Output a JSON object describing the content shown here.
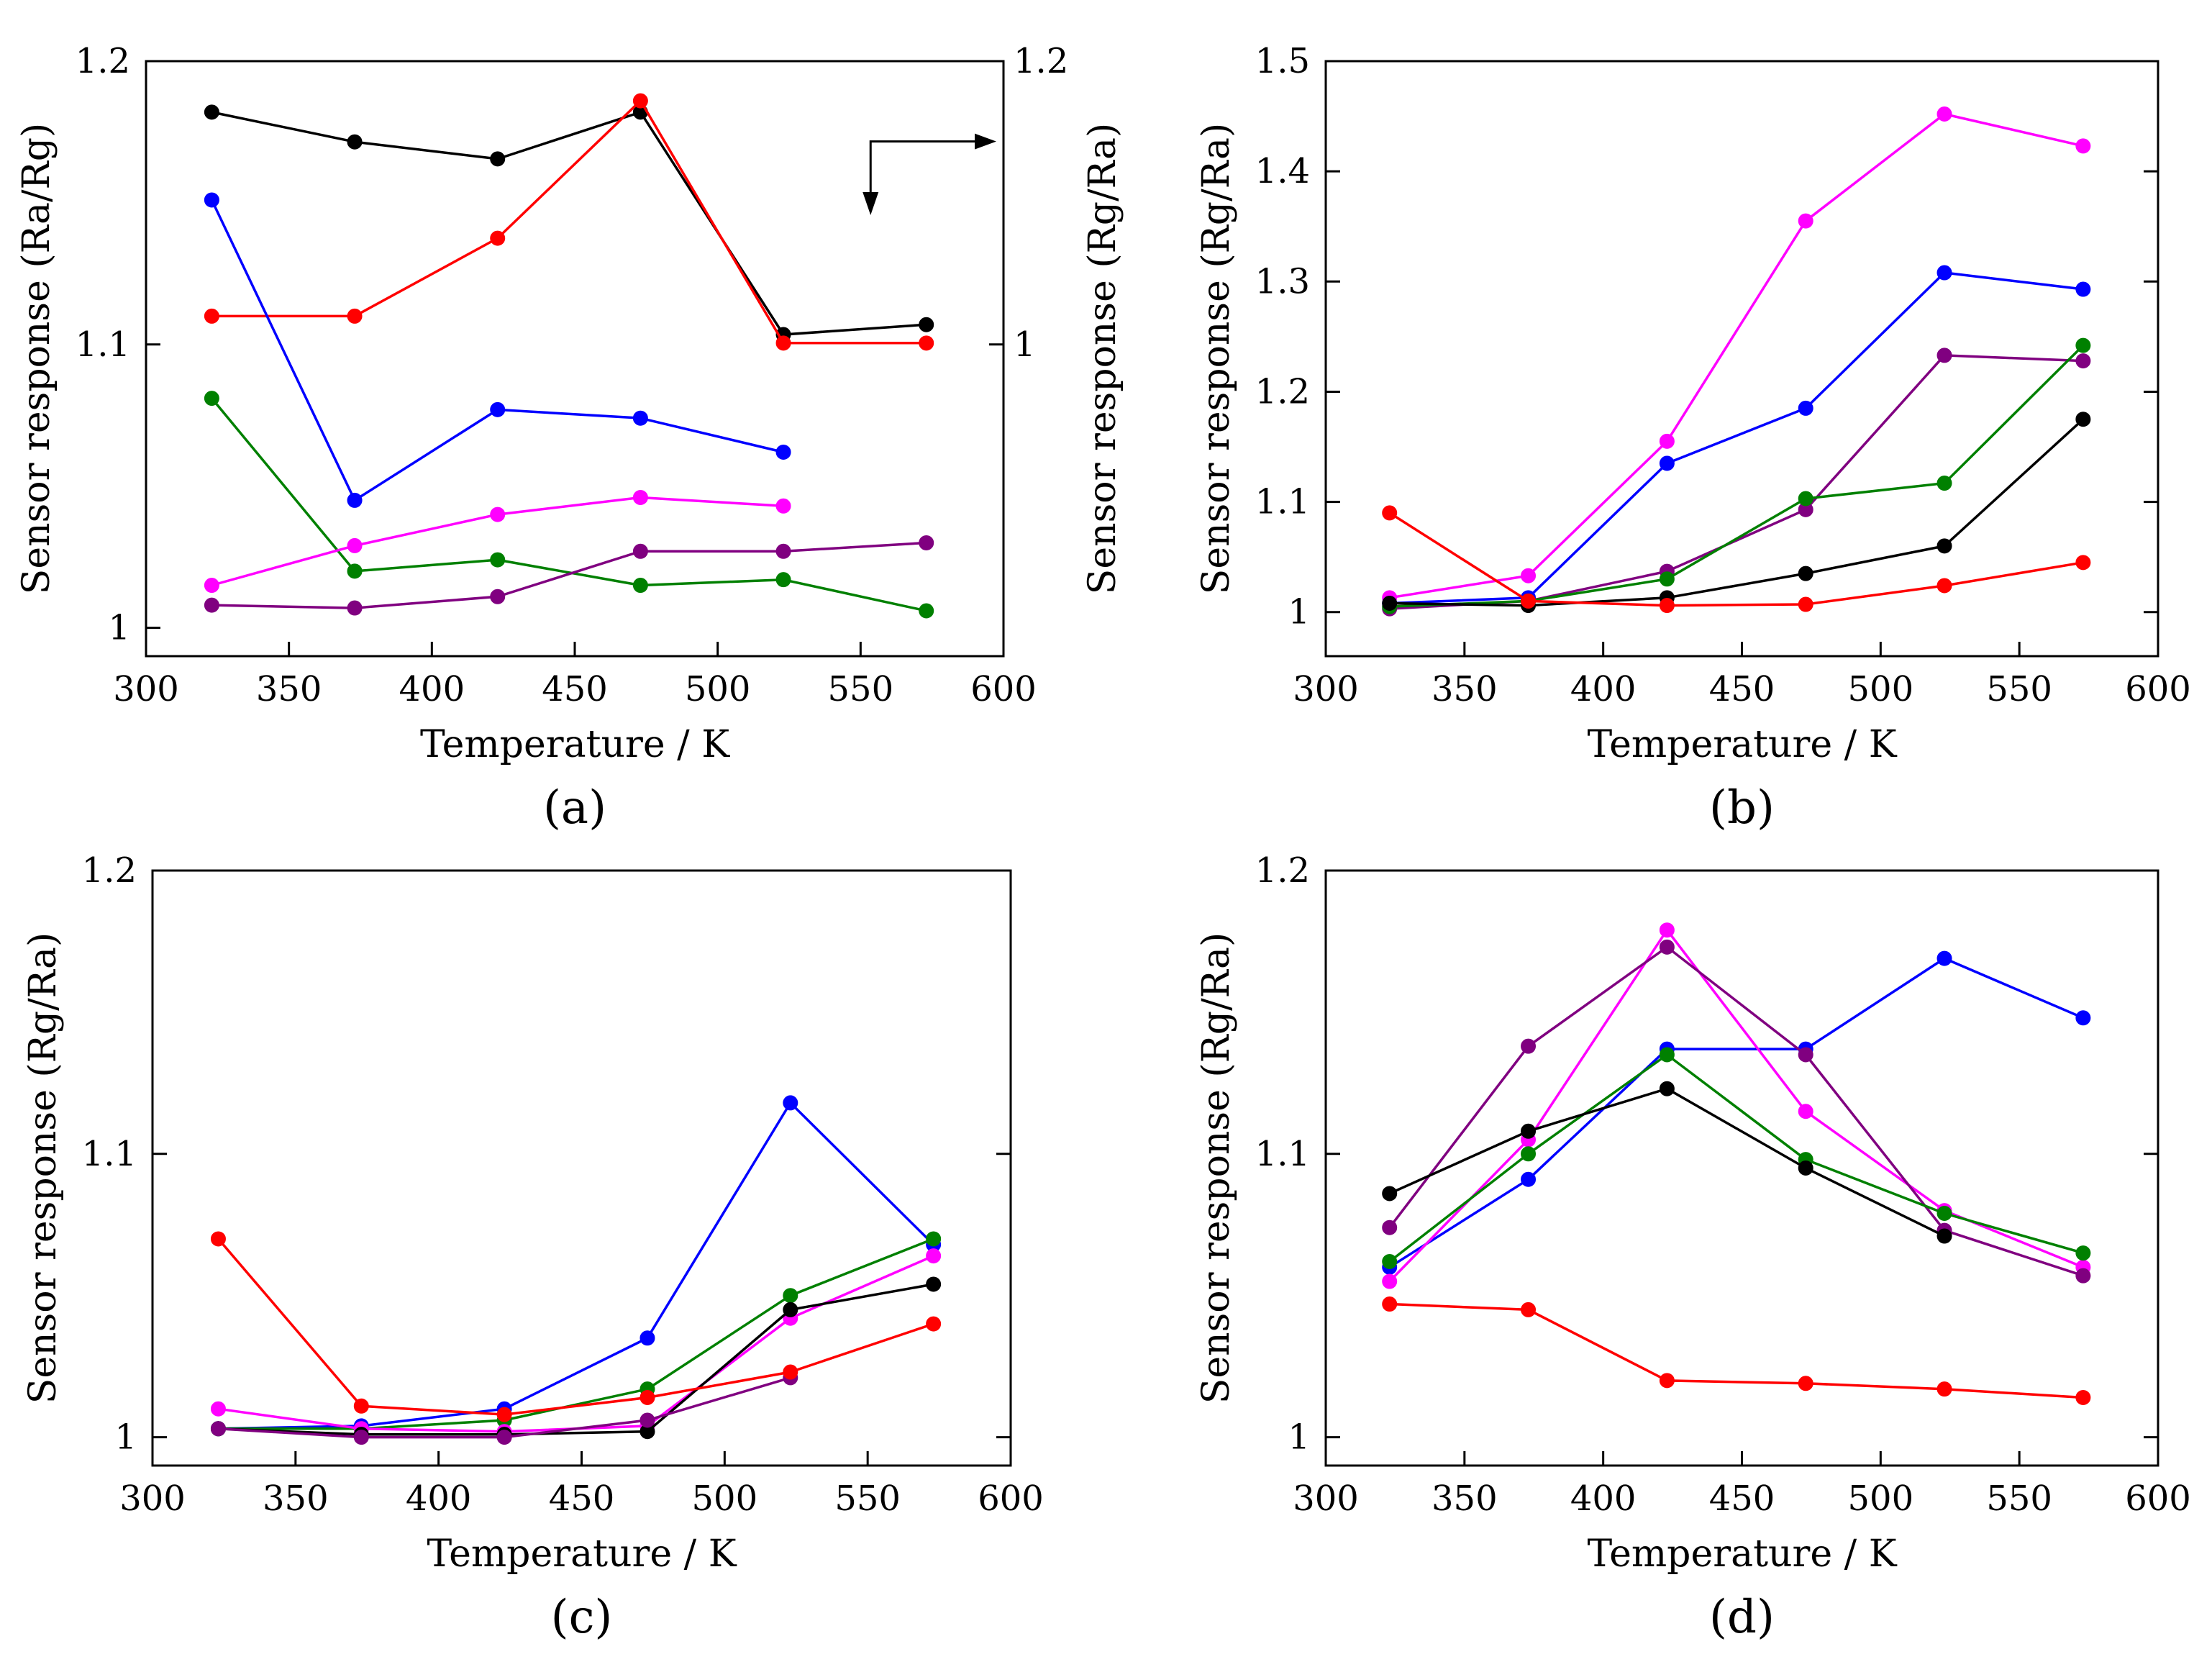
{
  "chart_data": [
    {
      "type": "line",
      "panel_label": "(a)",
      "xlabel": "Temperature / K",
      "ylabel": "Sensor response (Ra/Rg)",
      "y2label": "Sensor response (Rg/Ra)",
      "xlim": [
        300,
        600
      ],
      "ylim": [
        0.99,
        1.2
      ],
      "y2lim": [
        0.78,
        1.2
      ],
      "xticks": [
        300,
        350,
        400,
        450,
        500,
        550,
        600
      ],
      "xtick_labels": [
        "300",
        "350",
        "400",
        "450",
        "500",
        "550",
        "600"
      ],
      "yticks": [
        1.0,
        1.1,
        1.2
      ],
      "ytick_labels": [
        "1",
        "1.1",
        "1.2"
      ],
      "y2ticks": [
        1.0,
        1.2
      ],
      "y2tick_labels": [
        "1",
        "1.2"
      ],
      "series": [
        {
          "color": "#000000",
          "axis": "y2",
          "x": [
            323,
            373,
            423,
            473,
            523,
            573
          ],
          "y": [
            1.164,
            1.143,
            1.131,
            1.164,
            1.007,
            1.014
          ]
        },
        {
          "color": "#ff0000",
          "axis": "y2",
          "x": [
            323,
            373,
            423,
            473,
            523,
            573
          ],
          "y": [
            1.02,
            1.02,
            1.075,
            1.172,
            1.001,
            1.001
          ]
        },
        {
          "color": "#0000ff",
          "axis": "y",
          "x": [
            323,
            373,
            423,
            473,
            523
          ],
          "y": [
            1.151,
            1.045,
            1.077,
            1.074,
            1.062
          ]
        },
        {
          "color": "#008000",
          "axis": "y",
          "x": [
            323,
            373,
            423,
            473,
            523,
            573
          ],
          "y": [
            1.081,
            1.02,
            1.024,
            1.015,
            1.017,
            1.006
          ]
        },
        {
          "color": "#ff00ff",
          "axis": "y",
          "x": [
            323,
            373,
            423,
            473,
            523
          ],
          "y": [
            1.015,
            1.029,
            1.04,
            1.046,
            1.043
          ]
        },
        {
          "color": "#800080",
          "axis": "y",
          "x": [
            323,
            373,
            423,
            473,
            523,
            573
          ],
          "y": [
            1.008,
            1.007,
            1.011,
            1.027,
            1.027,
            1.03
          ]
        }
      ],
      "annotation": "bent arrow pointing right toward the right axis and down toward the lower data"
    },
    {
      "type": "line",
      "panel_label": "(b)",
      "xlabel": "Temperature / K",
      "ylabel": "Sensor response (Rg/Ra)",
      "xlim": [
        300,
        600
      ],
      "ylim": [
        0.96,
        1.5
      ],
      "xticks": [
        300,
        350,
        400,
        450,
        500,
        550,
        600
      ],
      "xtick_labels": [
        "300",
        "350",
        "400",
        "450",
        "500",
        "550",
        "600"
      ],
      "yticks": [
        1.0,
        1.1,
        1.2,
        1.3,
        1.4,
        1.5
      ],
      "ytick_labels": [
        "1",
        "1.1",
        "1.2",
        "1.3",
        "1.4",
        "1.5"
      ],
      "series": [
        {
          "color": "#ff00ff",
          "x": [
            323,
            373,
            423,
            473,
            523,
            573
          ],
          "y": [
            1.013,
            1.033,
            1.155,
            1.355,
            1.452,
            1.423
          ]
        },
        {
          "color": "#0000ff",
          "x": [
            323,
            373,
            423,
            473,
            523,
            573
          ],
          "y": [
            1.008,
            1.013,
            1.135,
            1.185,
            1.308,
            1.293
          ]
        },
        {
          "color": "#800080",
          "x": [
            323,
            373,
            423,
            473,
            523,
            573
          ],
          "y": [
            1.003,
            1.01,
            1.037,
            1.093,
            1.233,
            1.228
          ]
        },
        {
          "color": "#008000",
          "x": [
            323,
            373,
            423,
            473,
            523,
            573
          ],
          "y": [
            1.005,
            1.01,
            1.03,
            1.103,
            1.117,
            1.242
          ]
        },
        {
          "color": "#000000",
          "x": [
            323,
            373,
            423,
            473,
            523,
            573
          ],
          "y": [
            1.008,
            1.006,
            1.013,
            1.035,
            1.06,
            1.175
          ]
        },
        {
          "color": "#ff0000",
          "x": [
            323,
            373,
            423,
            473,
            523,
            573
          ],
          "y": [
            1.09,
            1.01,
            1.006,
            1.007,
            1.024,
            1.045
          ]
        }
      ]
    },
    {
      "type": "line",
      "panel_label": "(c)",
      "xlabel": "Temperature / K",
      "ylabel": "Sensor response (Rg/Ra)",
      "xlim": [
        300,
        600
      ],
      "ylim": [
        0.99,
        1.2
      ],
      "xticks": [
        300,
        350,
        400,
        450,
        500,
        550,
        600
      ],
      "xtick_labels": [
        "300",
        "350",
        "400",
        "450",
        "500",
        "550",
        "600"
      ],
      "yticks": [
        1.0,
        1.1,
        1.2
      ],
      "ytick_labels": [
        "1",
        "1.1",
        "1.2"
      ],
      "series": [
        {
          "color": "#0000ff",
          "x": [
            323,
            373,
            423,
            473,
            523,
            573
          ],
          "y": [
            1.003,
            1.004,
            1.01,
            1.035,
            1.118,
            1.068
          ]
        },
        {
          "color": "#008000",
          "x": [
            323,
            373,
            423,
            473,
            523,
            573
          ],
          "y": [
            1.003,
            1.003,
            1.006,
            1.017,
            1.05,
            1.07
          ]
        },
        {
          "color": "#ff00ff",
          "x": [
            323,
            373,
            423,
            473,
            523,
            573
          ],
          "y": [
            1.01,
            1.003,
            1.002,
            1.004,
            1.042,
            1.064
          ]
        },
        {
          "color": "#000000",
          "x": [
            323,
            373,
            423,
            473,
            523,
            573
          ],
          "y": [
            1.003,
            1.001,
            1.001,
            1.002,
            1.045,
            1.054
          ]
        },
        {
          "color": "#800080",
          "x": [
            323,
            373,
            423,
            473,
            523
          ],
          "y": [
            1.003,
            1.0,
            1.0,
            1.006,
            1.021
          ]
        },
        {
          "color": "#ff0000",
          "x": [
            323,
            373,
            423,
            473,
            523,
            573
          ],
          "y": [
            1.07,
            1.011,
            1.008,
            1.014,
            1.023,
            1.04
          ]
        }
      ]
    },
    {
      "type": "line",
      "panel_label": "(d)",
      "xlabel": "Temperature / K",
      "ylabel": "Sensor response (Rg/Ra)",
      "xlim": [
        300,
        600
      ],
      "ylim": [
        0.99,
        1.2
      ],
      "xticks": [
        300,
        350,
        400,
        450,
        500,
        550,
        600
      ],
      "xtick_labels": [
        "300",
        "350",
        "400",
        "450",
        "500",
        "550",
        "600"
      ],
      "yticks": [
        1.0,
        1.1,
        1.2
      ],
      "ytick_labels": [
        "1",
        "1.1",
        "1.2"
      ],
      "series": [
        {
          "color": "#0000ff",
          "x": [
            323,
            373,
            423,
            473,
            523,
            573
          ],
          "y": [
            1.06,
            1.091,
            1.137,
            1.137,
            1.169,
            1.148
          ]
        },
        {
          "color": "#ff00ff",
          "x": [
            323,
            373,
            423,
            473,
            523,
            573
          ],
          "y": [
            1.055,
            1.105,
            1.179,
            1.115,
            1.08,
            1.06
          ]
        },
        {
          "color": "#800080",
          "x": [
            323,
            373,
            423,
            473,
            523,
            573
          ],
          "y": [
            1.074,
            1.138,
            1.173,
            1.135,
            1.073,
            1.057
          ]
        },
        {
          "color": "#008000",
          "x": [
            323,
            373,
            423,
            473,
            523,
            573
          ],
          "y": [
            1.062,
            1.1,
            1.135,
            1.098,
            1.079,
            1.065
          ]
        },
        {
          "color": "#000000",
          "x": [
            323,
            373,
            423,
            473,
            523
          ],
          "y": [
            1.086,
            1.108,
            1.123,
            1.095,
            1.071
          ]
        },
        {
          "color": "#ff0000",
          "x": [
            323,
            373,
            423,
            473,
            523,
            573
          ],
          "y": [
            1.047,
            1.045,
            1.02,
            1.019,
            1.017,
            1.014
          ]
        }
      ]
    }
  ]
}
